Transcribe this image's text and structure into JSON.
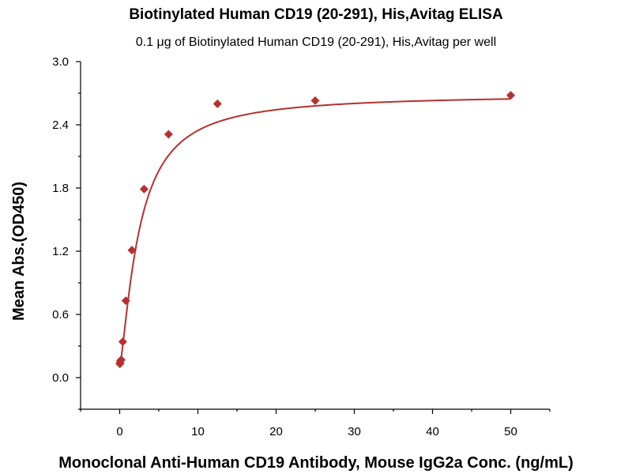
{
  "chart_data": {
    "type": "scatter",
    "title": "Biotinylated Human CD19 (20-291), His,Avitag ELISA",
    "subtitle": "0.1 μg of Biotinylated Human CD19 (20-291), His,Avitag per well",
    "xlabel": "Monoclonal Anti-Human CD19 Antibody, Mouse IgG2a Conc. (ng/mL)",
    "ylabel": "Mean Abs.(OD450)",
    "xlim": [
      -5,
      55
    ],
    "ylim": [
      -0.3,
      3.0
    ],
    "x_ticks": [
      0,
      10,
      20,
      30,
      40,
      50
    ],
    "x_tick_labels": [
      "0",
      "10",
      "20",
      "30",
      "40",
      "50"
    ],
    "y_ticks": [
      0.0,
      0.6,
      1.2,
      1.8,
      2.4,
      3.0
    ],
    "y_tick_labels": [
      "0.0",
      "0.6",
      "1.2",
      "1.8",
      "2.4",
      "3.0"
    ],
    "grid": false,
    "series": [
      {
        "name": "Mean Abs.(OD450)",
        "marker": "diamond",
        "color": "#b5312f",
        "x": [
          0.024,
          0.049,
          0.098,
          0.195,
          0.391,
          0.781,
          1.563,
          3.125,
          6.25,
          12.5,
          25,
          50
        ],
        "y": [
          0.13,
          0.14,
          0.16,
          0.17,
          0.34,
          0.73,
          1.21,
          1.79,
          2.31,
          2.6,
          2.63,
          2.68
        ]
      }
    ],
    "fit": {
      "type": "4PL",
      "color": "#b5312f",
      "bottom": 0.11,
      "top": 2.69,
      "ec50": 2.5,
      "hill": 1.35
    }
  }
}
